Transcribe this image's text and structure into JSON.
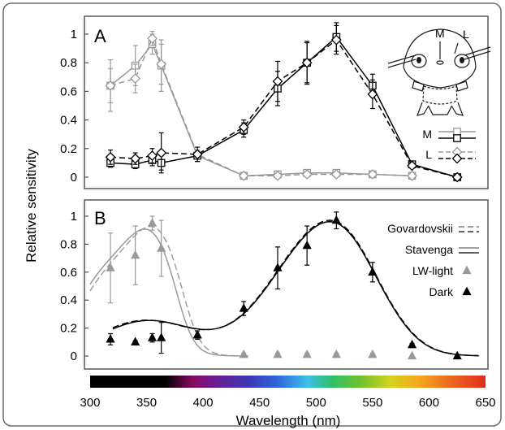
{
  "chart_data": {
    "shared": {
      "ylabel": "Relative sensitivity",
      "xlabel": "Wavelength (nm)",
      "xlim": [
        300,
        650
      ],
      "xticks": [
        300,
        350,
        400,
        450,
        500,
        550,
        600,
        650
      ],
      "yticks": [
        0,
        0.2,
        0.4,
        0.6,
        0.8,
        1
      ],
      "ylim": [
        -0.06,
        1.1
      ],
      "colorbar": "visible spectrum gradient 300-650 nm",
      "colors": {
        "gray": "#999999",
        "black": "#000000",
        "frame": "#4d4d4d"
      }
    },
    "panels": [
      {
        "panel_label": "A",
        "type": "line",
        "legend_position": "right",
        "inset": {
          "labels": [
            "M",
            "L"
          ],
          "icon": "head-ocelli-schematic"
        },
        "series": [
          {
            "name": "M",
            "group": "M",
            "color": "gray",
            "marker": "square",
            "dash": false,
            "x": [
              318,
              340,
              355,
              363,
              395,
              436,
              466,
              492,
              518,
              550,
              585
            ],
            "y": [
              0.64,
              0.78,
              0.93,
              0.78,
              0.15,
              0.01,
              0.02,
              0.03,
              0.03,
              0.02,
              0.01
            ],
            "err": [
              0.18,
              0.14,
              0.07,
              0.18,
              0.02,
              0.01,
              0.01,
              0.02,
              0.02,
              0.01,
              0.01
            ]
          },
          {
            "name": "M",
            "group": "M",
            "color": "black",
            "marker": "square",
            "dash": false,
            "x": [
              318,
              340,
              355,
              363,
              395,
              436,
              466,
              492,
              518,
              550,
              585,
              625
            ],
            "y": [
              0.1,
              0.09,
              0.12,
              0.1,
              0.15,
              0.33,
              0.62,
              0.8,
              0.98,
              0.64,
              0.09,
              0.0
            ],
            "err": [
              0.03,
              0.03,
              0.04,
              0.05,
              0.04,
              0.05,
              0.12,
              0.15,
              0.1,
              0.08,
              0.02,
              0.0
            ]
          },
          {
            "name": "L",
            "group": "L",
            "color": "gray",
            "marker": "diamond",
            "dash": true,
            "x": [
              318,
              340,
              355,
              363,
              395,
              436,
              466,
              492,
              518,
              550,
              585
            ],
            "y": [
              0.64,
              0.69,
              0.97,
              0.79,
              0.16,
              0.01,
              0.01,
              0.02,
              0.02,
              0.02,
              0.01
            ],
            "err": [
              0.12,
              0.1,
              0.05,
              0.14,
              0.03,
              0.01,
              0.01,
              0.01,
              0.01,
              0.01,
              0.0
            ]
          },
          {
            "name": "L",
            "group": "L",
            "color": "black",
            "marker": "diamond",
            "dash": true,
            "x": [
              318,
              340,
              355,
              363,
              395,
              436,
              466,
              492,
              518,
              550,
              585,
              625
            ],
            "y": [
              0.14,
              0.13,
              0.15,
              0.17,
              0.16,
              0.35,
              0.67,
              0.8,
              0.96,
              0.58,
              0.08,
              0.0
            ],
            "err": [
              0.05,
              0.04,
              0.05,
              0.14,
              0.05,
              0.05,
              0.14,
              0.14,
              0.1,
              0.1,
              0.02,
              0.0
            ]
          }
        ]
      },
      {
        "panel_label": "B",
        "type": "scatter",
        "legend_position": "right",
        "curves": [
          {
            "name": "Govardovskii",
            "style": "double-dashed",
            "peaks_nm": [
              350,
              515
            ],
            "colors": [
              "gray",
              "black"
            ]
          },
          {
            "name": "Stavenga",
            "style": "solid",
            "peaks_nm": [
              350,
              515
            ],
            "colors": [
              "gray",
              "black"
            ]
          }
        ],
        "series": [
          {
            "name": "LW-light",
            "color": "gray",
            "marker": "triangle",
            "x": [
              318,
              340,
              355,
              363,
              395,
              436,
              466,
              492,
              518,
              550,
              585
            ],
            "y": [
              0.63,
              0.72,
              0.95,
              0.77,
              0.15,
              0.01,
              0.01,
              0.01,
              0.01,
              0.01,
              0.0
            ],
            "err": [
              0.25,
              0.21,
              0.05,
              0.2,
              0.03,
              0.01,
              0.01,
              0.01,
              0.01,
              0.01,
              0.0
            ]
          },
          {
            "name": "Dark",
            "color": "black",
            "marker": "triangle",
            "x": [
              318,
              340,
              355,
              363,
              395,
              436,
              466,
              492,
              518,
              550,
              585,
              625
            ],
            "y": [
              0.12,
              0.1,
              0.13,
              0.13,
              0.15,
              0.34,
              0.63,
              0.79,
              0.97,
              0.6,
              0.08,
              0.0
            ],
            "err": [
              0.04,
              0.01,
              0.03,
              0.11,
              0.03,
              0.05,
              0.15,
              0.14,
              0.06,
              0.07,
              0.01,
              0.0
            ]
          }
        ]
      }
    ]
  }
}
